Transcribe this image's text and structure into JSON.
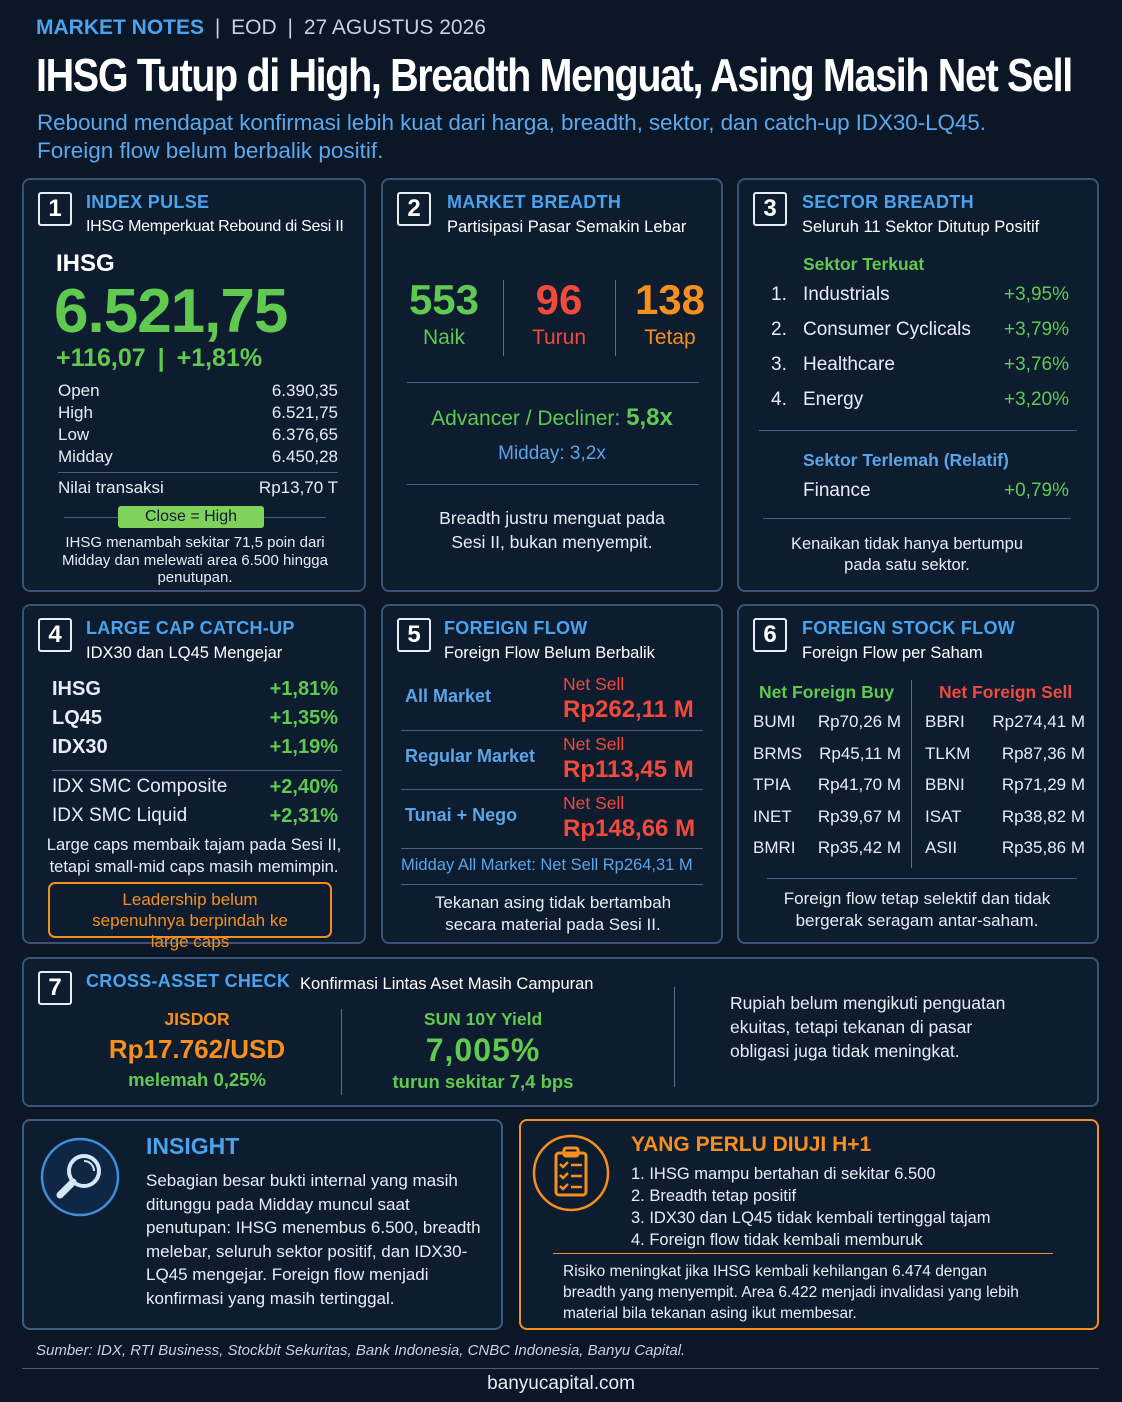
{
  "header": {
    "label": "MARKET NOTES",
    "sep1": "|",
    "eod": "EOD",
    "sep2": "|",
    "date": "27 AGUSTUS 2026",
    "title": "IHSG Tutup di High, Breadth Menguat, Asing Masih Net Sell",
    "subtitle_line1": "Rebound mendapat konfirmasi lebih kuat dari harga, breadth, sektor, dan catch-up IDX30-LQ45.",
    "subtitle_line2": "Foreign flow belum berbalik positif."
  },
  "card1": {
    "num": "1",
    "title": "INDEX PULSE",
    "subtitle": "IHSG Memperkuat Rebound di Sesi II",
    "index_name": "IHSG",
    "value": "6.521,75",
    "change": "+116,07",
    "sep": "|",
    "change_pct": "+1,81%",
    "rows": [
      {
        "label": "Open",
        "value": "6.390,35"
      },
      {
        "label": "High",
        "value": "6.521,75"
      },
      {
        "label": "Low",
        "value": "6.376,65"
      },
      {
        "label": "Midday",
        "value": "6.450,28"
      }
    ],
    "turnover_label": "Nilai transaksi",
    "turnover_value": "Rp13,70 T",
    "badge": "Close = High",
    "note": "IHSG menambah sekitar 71,5 poin dari Midday dan melewati area 6.500 hingga penutupan."
  },
  "card2": {
    "num": "2",
    "title": "MARKET BREADTH",
    "subtitle": "Partisipasi Pasar Semakin Lebar",
    "naik_value": "553",
    "naik_label": "Naik",
    "turun_value": "96",
    "turun_label": "Turun",
    "tetap_value": "138",
    "tetap_label": "Tetap",
    "ad_label": "Advancer / Decliner:",
    "ad_value": "5,8x",
    "midday": "Midday: 3,2x",
    "note": "Breadth justru menguat pada Sesi II, bukan menyempit."
  },
  "card3": {
    "num": "3",
    "title": "SECTOR BREADTH",
    "subtitle": "Seluruh 11 Sektor Ditutup Positif",
    "top_label": "Sektor Terkuat",
    "sectors": [
      {
        "rank": "1.",
        "name": "Industrials",
        "pct": "+3,95%"
      },
      {
        "rank": "2.",
        "name": "Consumer Cyclicals",
        "pct": "+3,79%"
      },
      {
        "rank": "3.",
        "name": "Healthcare",
        "pct": "+3,76%"
      },
      {
        "rank": "4.",
        "name": "Energy",
        "pct": "+3,20%"
      }
    ],
    "weak_label": "Sektor Terlemah (Relatif)",
    "weak_name": "Finance",
    "weak_pct": "+0,79%",
    "note": "Kenaikan tidak hanya bertumpu pada satu sektor."
  },
  "card4": {
    "num": "4",
    "title": "LARGE CAP CATCH-UP",
    "subtitle": "IDX30 dan LQ45 Mengejar",
    "rows": [
      {
        "label": "IHSG",
        "value": "+1,81%"
      },
      {
        "label": "LQ45",
        "value": "+1,35%"
      },
      {
        "label": "IDX30",
        "value": "+1,19%"
      }
    ],
    "rows2": [
      {
        "label": "IDX SMC Composite",
        "value": "+2,40%"
      },
      {
        "label": "IDX SMC Liquid",
        "value": "+2,31%"
      }
    ],
    "note": "Large caps membaik tajam pada Sesi II, tetapi small-mid caps masih memimpin.",
    "callout": "Leadership belum sepenuhnya berpindah ke large caps"
  },
  "card5": {
    "num": "5",
    "title": "FOREIGN FLOW",
    "subtitle": "Foreign Flow Belum Berbalik",
    "rows": [
      {
        "label": "All Market",
        "status": "Net Sell",
        "value": "Rp262,11 M"
      },
      {
        "label": "Regular Market",
        "status": "Net Sell",
        "value": "Rp113,45 M"
      },
      {
        "label": "Tunai + Nego",
        "status": "Net Sell",
        "value": "Rp148,66 M"
      }
    ],
    "midday_label": "Midday All Market:",
    "midday_value": "Net Sell Rp264,31 M",
    "note": "Tekanan asing tidak bertambah secara material pada Sesi II."
  },
  "card6": {
    "num": "6",
    "title": "FOREIGN STOCK FLOW",
    "subtitle": "Foreign Flow per Saham",
    "buy_label": "Net Foreign Buy",
    "sell_label": "Net Foreign Sell",
    "buy": [
      {
        "ticker": "BUMI",
        "value": "Rp70,26 M"
      },
      {
        "ticker": "BRMS",
        "value": "Rp45,11 M"
      },
      {
        "ticker": "TPIA",
        "value": "Rp41,70 M"
      },
      {
        "ticker": "INET",
        "value": "Rp39,67 M"
      },
      {
        "ticker": "BMRI",
        "value": "Rp35,42 M"
      }
    ],
    "sell": [
      {
        "ticker": "BBRI",
        "value": "Rp274,41 M"
      },
      {
        "ticker": "TLKM",
        "value": "Rp87,36 M"
      },
      {
        "ticker": "BBNI",
        "value": "Rp71,29 M"
      },
      {
        "ticker": "ISAT",
        "value": "Rp38,82 M"
      },
      {
        "ticker": "ASII",
        "value": "Rp35,86 M"
      }
    ],
    "note": "Foreign flow tetap selektif dan tidak bergerak seragam antar-saham."
  },
  "card7": {
    "num": "7",
    "title": "CROSS-ASSET CHECK",
    "subtitle": "Konfirmasi Lintas Aset Masih Campuran",
    "jisdor_label": "JISDOR",
    "jisdor_value": "Rp17.762/USD",
    "jisdor_note": "melemah 0,25%",
    "sun_label": "SUN 10Y Yield",
    "sun_value": "7,005%",
    "sun_note": "turun sekitar 7,4 bps",
    "note": "Rupiah belum mengikuti penguatan ekuitas, tetapi tekanan di pasar obligasi juga tidak meningkat."
  },
  "insight": {
    "title": "INSIGHT",
    "text": "Sebagian besar bukti internal yang masih ditunggu pada Midday muncul saat penutupan: IHSG menembus 6.500, breadth melebar, seluruh sektor positif, dan IDX30-LQ45 mengejar. Foreign flow menjadi konfirmasi yang masih tertinggal."
  },
  "test": {
    "title": "YANG PERLU DIUJI H+1",
    "items": [
      "1.  IHSG mampu bertahan di sekitar 6.500",
      "2.  Breadth tetap positif",
      "3.  IDX30 dan LQ45 tidak kembali tertinggal tajam",
      "4.  Foreign flow tidak kembali memburuk"
    ],
    "risk": "Risiko meningkat jika IHSG kembali kehilangan 6.474 dengan breadth yang menyempit. Area 6.422 menjadi invalidasi yang lebih material bila tekanan asing ikut membesar."
  },
  "footer": {
    "source": "Sumber: IDX, RTI Business, Stockbit Sekuritas, Bank Indonesia, CNBC Indonesia, Banyu Capital.",
    "site": "banyucapital.com"
  },
  "colors": {
    "background": "#0b1626",
    "accent_blue": "#4aa3ec",
    "positive": "#5fca4f",
    "negative": "#f04a3c",
    "orange": "#f5901f"
  },
  "icons": {
    "insight": "magnifier-icon",
    "test": "clipboard-checklist-icon"
  }
}
